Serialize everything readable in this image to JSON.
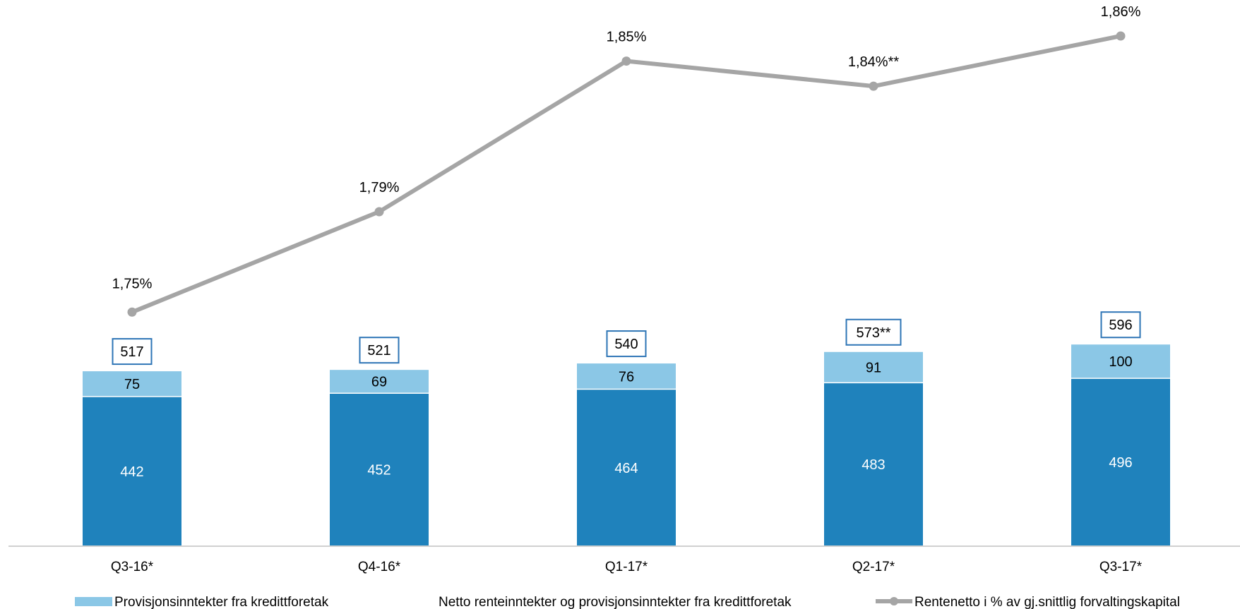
{
  "chart_data": {
    "type": "bar",
    "stacked": true,
    "categories": [
      "Q3-16*",
      "Q4-16*",
      "Q1-17*",
      "Q2-17*",
      "Q3-17*"
    ],
    "series": [
      {
        "name": "Netto renteinntekter og provisjonsinntekter fra kredittforetak",
        "values": [
          442,
          452,
          464,
          483,
          496
        ],
        "color": "#1F82BC",
        "labels": [
          "442",
          "452",
          "464",
          "483",
          "496"
        ]
      },
      {
        "name": "Provisjonsinntekter fra kredittforetak",
        "values": [
          75,
          69,
          76,
          91,
          100
        ],
        "color": "#8BC7E6",
        "labels": [
          "75",
          "69",
          "76",
          "91",
          "100"
        ]
      }
    ],
    "totals": [
      "517",
      "521",
      "540",
      "573**",
      "596"
    ],
    "line": {
      "name": "Rentenetto i % av gj.snittlig forvaltingskapital",
      "values": [
        1.75,
        1.79,
        1.85,
        1.84,
        1.86
      ],
      "labels": [
        "1,75%",
        "1,79%",
        "1,85%",
        "1,84%**",
        "1,86%"
      ],
      "color": "#A5A5A5"
    },
    "ylim": [
      0,
      600
    ],
    "line_ylim": [
      1.72,
      1.86
    ],
    "grid": false,
    "legend_position": "bottom"
  }
}
